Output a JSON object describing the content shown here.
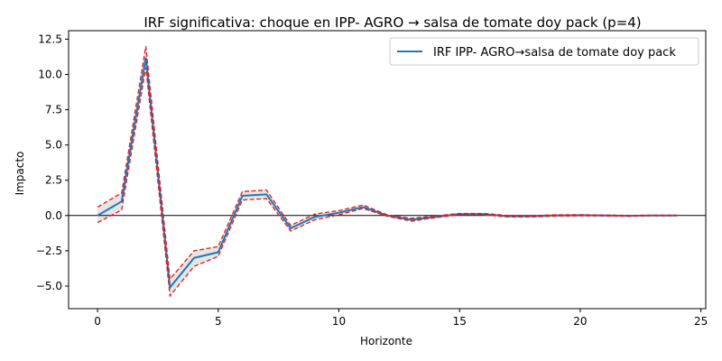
{
  "chart_data": {
    "type": "line",
    "title": "IRF significativa: choque en IPP- AGRO → salsa de tomate doy pack (p=4)",
    "xlabel": "Horizonte",
    "ylabel": "Impacto",
    "xlim": [
      -1.2,
      25.2
    ],
    "ylim": [
      -6.6,
      13.1
    ],
    "xticks": [
      0,
      5,
      10,
      15,
      20,
      25
    ],
    "yticks": [
      -5.0,
      -2.5,
      0.0,
      2.5,
      5.0,
      7.5,
      10.0,
      12.5
    ],
    "ytick_labels": [
      "−5.0",
      "−2.5",
      "0.0",
      "2.5",
      "5.0",
      "7.5",
      "10.0",
      "12.5"
    ],
    "grid": false,
    "zero_line": 0,
    "legend_position": "top-right",
    "x": [
      0,
      1,
      2,
      3,
      4,
      5,
      6,
      7,
      8,
      9,
      10,
      11,
      12,
      13,
      14,
      15,
      16,
      17,
      18,
      19,
      20,
      21,
      22,
      23,
      24
    ],
    "series": [
      {
        "name": "IRF IPP- AGRO→salsa de tomate doy pack",
        "color": "#1f77b4",
        "values": [
          0.0,
          1.0,
          11.2,
          -5.1,
          -3.0,
          -2.6,
          1.4,
          1.5,
          -0.9,
          -0.1,
          0.2,
          0.6,
          0.0,
          -0.3,
          -0.1,
          0.1,
          0.1,
          -0.05,
          -0.05,
          0.0,
          0.02,
          0.0,
          -0.02,
          0.0,
          0.0
        ]
      }
    ],
    "band": {
      "fill_color": "#d3d3d3",
      "line_color": "#e31a1c",
      "upper": [
        0.6,
        1.6,
        12.0,
        -4.5,
        -2.5,
        -2.2,
        1.7,
        1.8,
        -0.7,
        0.1,
        0.35,
        0.75,
        0.05,
        -0.2,
        -0.02,
        0.15,
        0.15,
        0.0,
        0.0,
        0.05,
        0.06,
        0.03,
        0.01,
        0.02,
        0.02
      ],
      "lower": [
        -0.5,
        0.4,
        10.5,
        -5.7,
        -3.6,
        -2.9,
        1.1,
        1.2,
        -1.1,
        -0.3,
        0.05,
        0.5,
        -0.05,
        -0.4,
        -0.15,
        0.05,
        0.05,
        -0.1,
        -0.1,
        -0.04,
        -0.02,
        -0.03,
        -0.05,
        -0.02,
        -0.02
      ]
    }
  }
}
